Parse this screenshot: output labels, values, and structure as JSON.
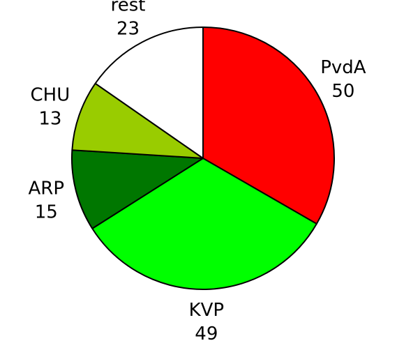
{
  "chart_data": {
    "type": "pie",
    "title": "",
    "start": "top",
    "direction": "clockwise",
    "slices": [
      {
        "label": "PvdA",
        "value": 50,
        "color": "#ff0000"
      },
      {
        "label": "KVP",
        "value": 49,
        "color": "#00ff00"
      },
      {
        "label": "ARP",
        "value": 15,
        "color": "#007700"
      },
      {
        "label": "CHU",
        "value": 13,
        "color": "#99cc00"
      },
      {
        "label": "rest",
        "value": 23,
        "color": "#ffffff"
      }
    ]
  }
}
